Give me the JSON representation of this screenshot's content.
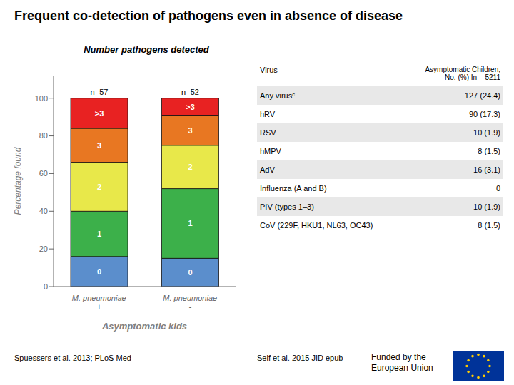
{
  "chart_data": {
    "type": "bar",
    "stacked": true,
    "title": "Frequent co-detection of pathogens even in absence of disease",
    "subtitle": "Number pathogens detected",
    "x_label": "Asymptomatic kids",
    "y_label": "Percentage found",
    "categories": [
      "M. pneumoniae\n+",
      "M. pneumoniae\n-"
    ],
    "series": [
      {
        "name": "0",
        "color": "#5B8ECC",
        "values": [
          16,
          15
        ]
      },
      {
        "name": "1",
        "color": "#3CB04A",
        "values": [
          24,
          37
        ]
      },
      {
        "name": "2",
        "color": "#E8E84A",
        "values": [
          26,
          23
        ]
      },
      {
        "name": "3",
        "color": "#E87722",
        "values": [
          18,
          16
        ]
      },
      {
        "name": ">3",
        "color": "#E82222",
        "values": [
          16,
          9
        ]
      }
    ],
    "ylim": [
      0,
      112
    ],
    "yticks": [
      0,
      20,
      40,
      60,
      80,
      100
    ],
    "grid": false,
    "annotations": [
      {
        "category": "M. pneumoniae\n+",
        "text": "n=57"
      },
      {
        "category": "M. pneumoniae\n-",
        "text": "n=52"
      }
    ]
  },
  "table": {
    "columns": [
      "Virus",
      "Asymptomatic Children,\nNo. (%) In = 5211"
    ],
    "rows": [
      [
        "Any virusᶜ",
        "127 (24.4)"
      ],
      [
        "hRV",
        "90 (17.3)"
      ],
      [
        "RSV",
        "10 (1.9)"
      ],
      [
        "hMPV",
        "8 (1.5)"
      ],
      [
        "AdV",
        "16 (3.1)"
      ],
      [
        "Influenza (A and B)",
        "0"
      ],
      [
        "PIV (types 1–3)",
        "10 (1.9)"
      ],
      [
        "CoV (229F, HKU1, NL63, OC43)",
        "8 (1.5)"
      ]
    ]
  },
  "footnotes": [
    "Spuessers et al. 2013;  PLoS Med",
    "Self  et al. 2015 JID epub",
    "Funded by the\nEuropean Union"
  ]
}
